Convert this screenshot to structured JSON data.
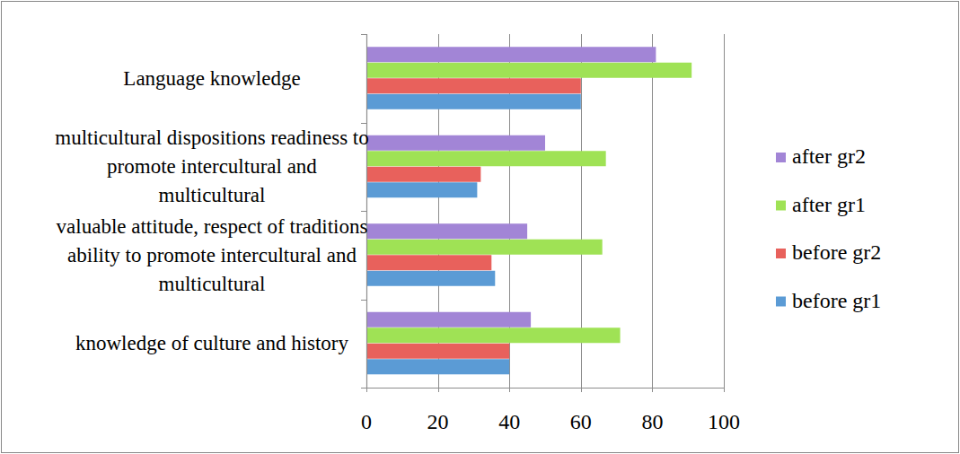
{
  "chart_data": {
    "type": "bar",
    "orientation": "horizontal",
    "categories": [
      "knowledge of culture and history",
      "valuable attitude, respect of traditions ability to promote intercultural and multicultural",
      "multicultural dispositions readiness to promote intercultural and multicultural",
      "Language knowledge"
    ],
    "series": [
      {
        "name": "before gr1",
        "color": "#5b9bd5",
        "values": [
          40,
          36,
          31,
          60
        ]
      },
      {
        "name": "before gr2",
        "color": "#e8615c",
        "values": [
          40,
          35,
          32,
          60
        ]
      },
      {
        "name": "after gr1",
        "color": "#9fe255",
        "values": [
          71,
          66,
          67,
          91
        ]
      },
      {
        "name": "after gr2",
        "color": "#a285d6",
        "values": [
          46,
          45,
          50,
          81
        ]
      }
    ],
    "xlim": [
      0,
      100
    ],
    "xticks": [
      0,
      20,
      40,
      60,
      80,
      100
    ],
    "grid": true,
    "legend": "right"
  }
}
